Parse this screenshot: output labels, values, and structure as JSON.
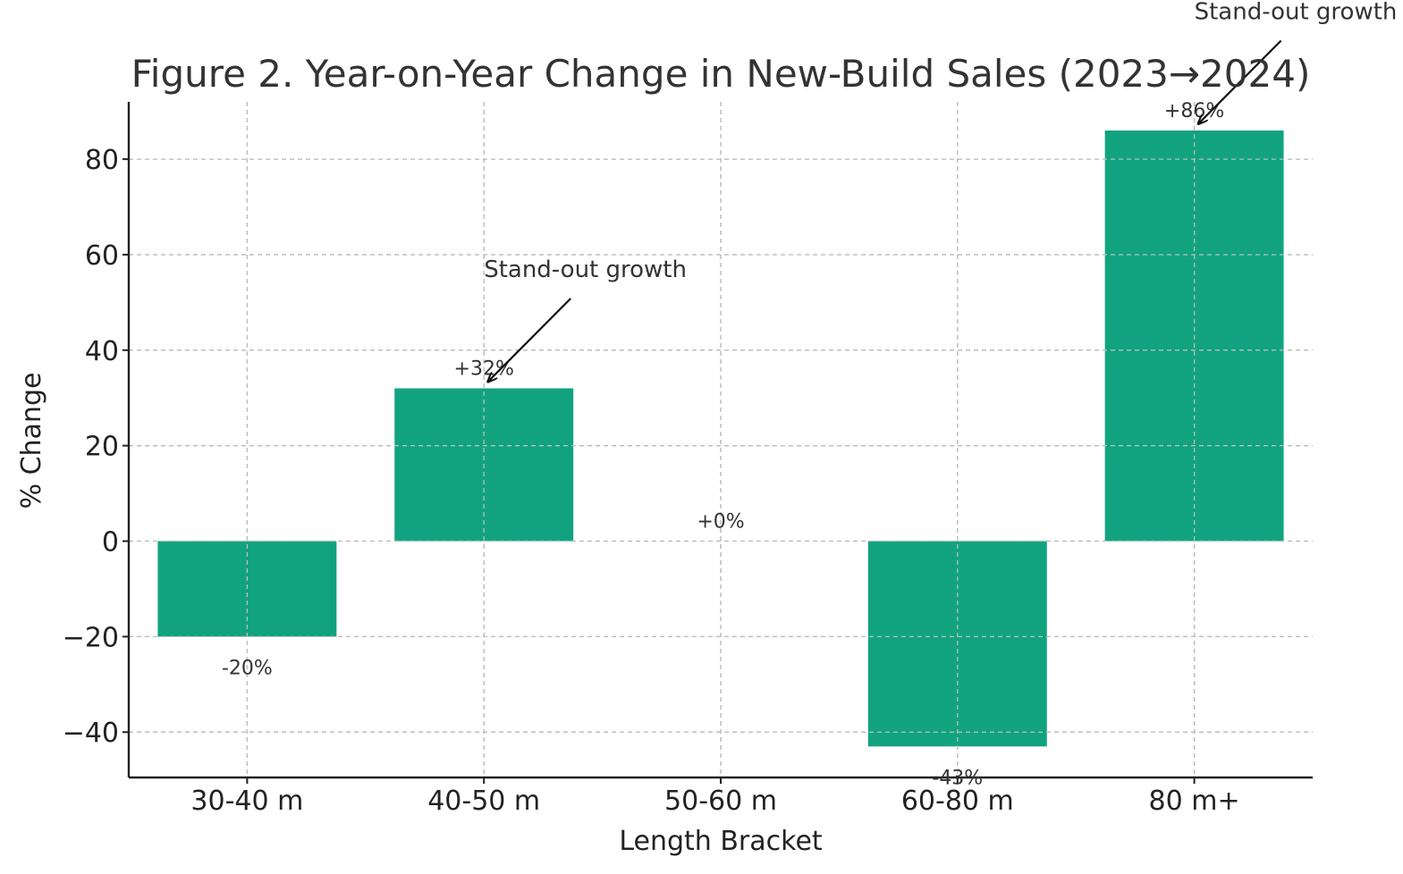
{
  "chart_data": {
    "type": "bar",
    "title": "Figure 2. Year-on-Year Change in New-Build Sales (2023→2024)",
    "xlabel": "Length Bracket",
    "ylabel": "% Change",
    "categories": [
      "30-40 m",
      "40-50 m",
      "50-60 m",
      "60-80 m",
      "80 m+"
    ],
    "values": [
      -20,
      32,
      0,
      -43,
      86
    ],
    "data_labels": [
      "-20%",
      "+32%",
      "+0%",
      "-43%",
      "+86%"
    ],
    "yticks": [
      -40,
      -20,
      0,
      20,
      40,
      60,
      80
    ],
    "ytick_labels": [
      "−40",
      "−20",
      "0",
      "20",
      "40",
      "60",
      "80"
    ],
    "ylim": [
      -49.5,
      92
    ],
    "grid": true,
    "bar_color": "#11a37f",
    "annotations": [
      {
        "text": "Stand-out growth",
        "category": "40-50 m",
        "value": 32
      },
      {
        "text": "Stand-out growth",
        "category": "80 m+",
        "value": 86
      }
    ]
  }
}
